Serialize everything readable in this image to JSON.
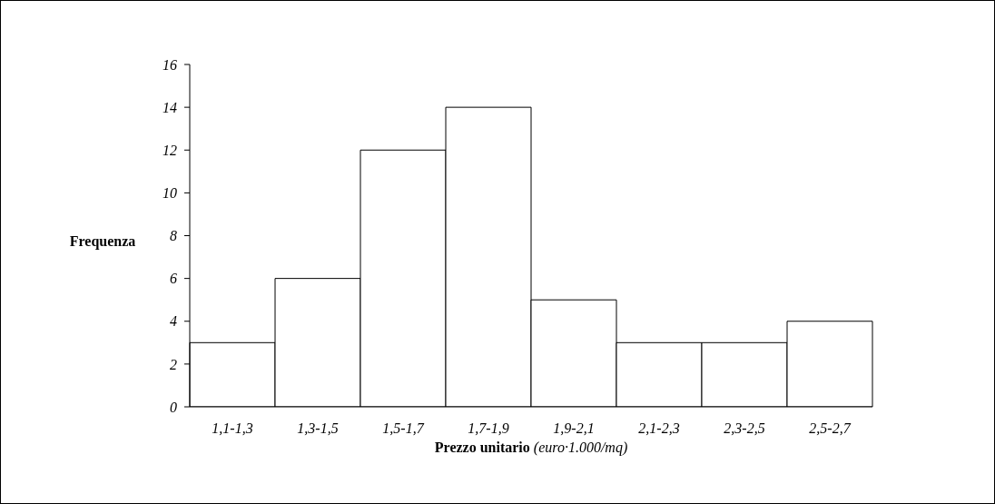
{
  "chart_data": {
    "type": "bar",
    "categories": [
      "1,1-1,3",
      "1,3-1,5",
      "1,5-1,7",
      "1,7-1,9",
      "1,9-2,1",
      "2,1-2,3",
      "2,3-2,5",
      "2,5-2,7"
    ],
    "values": [
      3,
      6,
      12,
      14,
      5,
      3,
      3,
      4
    ],
    "color": "#ffffff",
    "ylim": [
      0,
      16
    ],
    "yticks": [
      0,
      2,
      4,
      6,
      8,
      10,
      12,
      14,
      16
    ],
    "xlabel": "Prezzo unitario (euro·1.000/mq)",
    "ylabel": "Frequenza",
    "grid": false
  }
}
